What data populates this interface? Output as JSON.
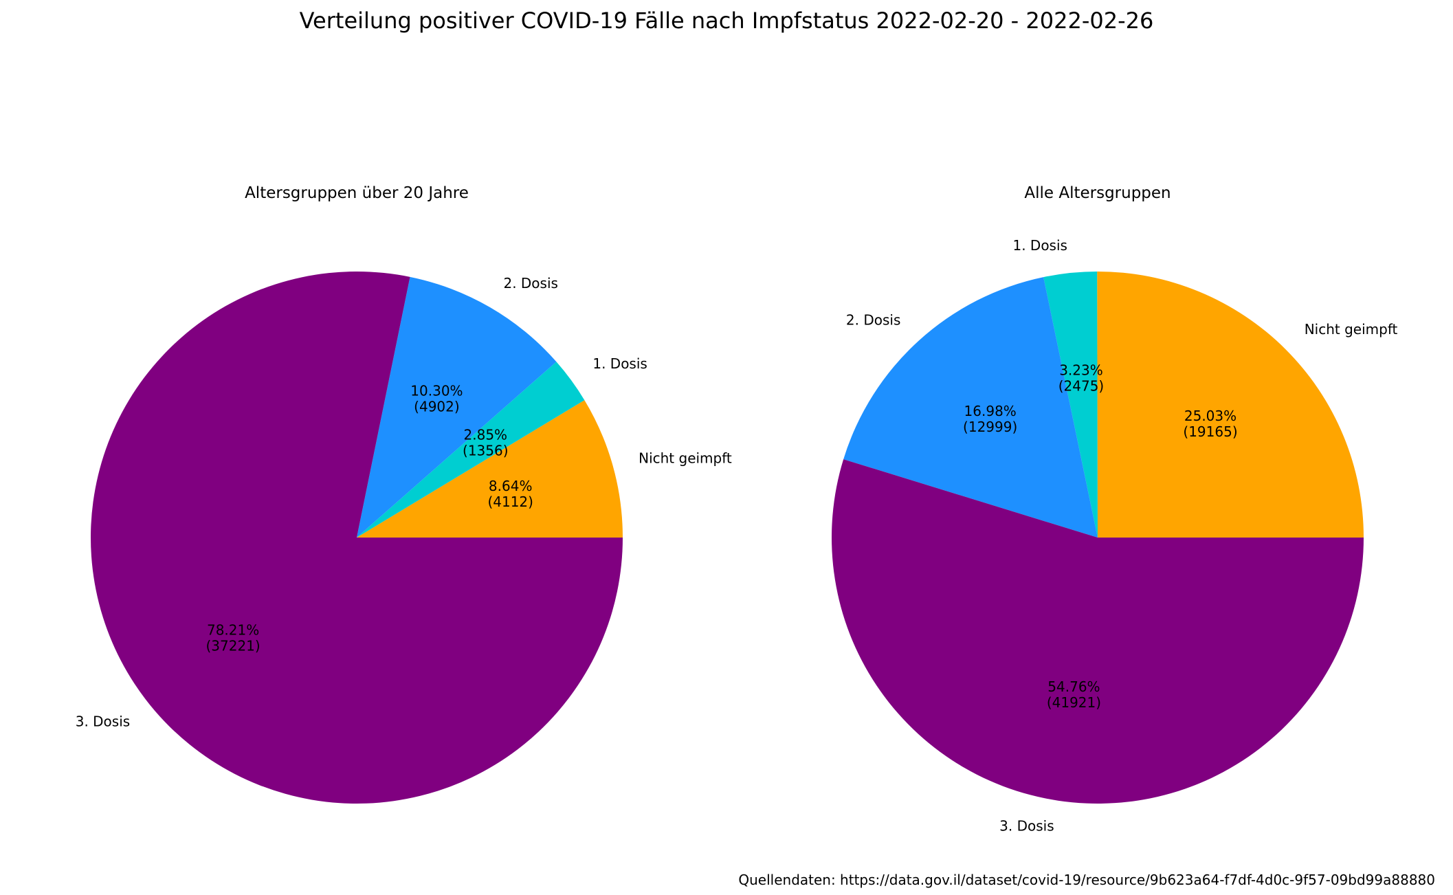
{
  "title": "Verteilung positiver COVID-19 Fälle nach Impfstatus 2022-02-20 - 2022-02-26",
  "source_note": "Quellendaten: https://data.gov.il/dataset/covid-19/resource/9b623a64-f7df-4d0c-9f57-09bd99a88880",
  "chart_data": [
    {
      "type": "pie",
      "title": "Altersgruppen über 20 Jahre",
      "slices": [
        {
          "label": "Nicht geimpft",
          "value": 4112,
          "pct_label": "8.64%",
          "count_label": "(4112)",
          "color": "#ffa500"
        },
        {
          "label": "1. Dosis",
          "value": 1356,
          "pct_label": "2.85%",
          "count_label": "(1356)",
          "color": "#00ced1"
        },
        {
          "label": "2. Dosis",
          "value": 4902,
          "pct_label": "10.30%",
          "count_label": "(4902)",
          "color": "#1e90ff"
        },
        {
          "label": "3. Dosis",
          "value": 37221,
          "pct_label": "78.21%",
          "count_label": "(37221)",
          "color": "#800080"
        }
      ]
    },
    {
      "type": "pie",
      "title": "Alle Altersgruppen",
      "slices": [
        {
          "label": "Nicht geimpft",
          "value": 19165,
          "pct_label": "25.03%",
          "count_label": "(19165)",
          "color": "#ffa500"
        },
        {
          "label": "1. Dosis",
          "value": 2475,
          "pct_label": "3.23%",
          "count_label": "(2475)",
          "color": "#00ced1"
        },
        {
          "label": "2. Dosis",
          "value": 12999,
          "pct_label": "16.98%",
          "count_label": "(12999)",
          "color": "#1e90ff"
        },
        {
          "label": "3. Dosis",
          "value": 41921,
          "pct_label": "54.76%",
          "count_label": "(41921)",
          "color": "#800080"
        }
      ]
    }
  ]
}
